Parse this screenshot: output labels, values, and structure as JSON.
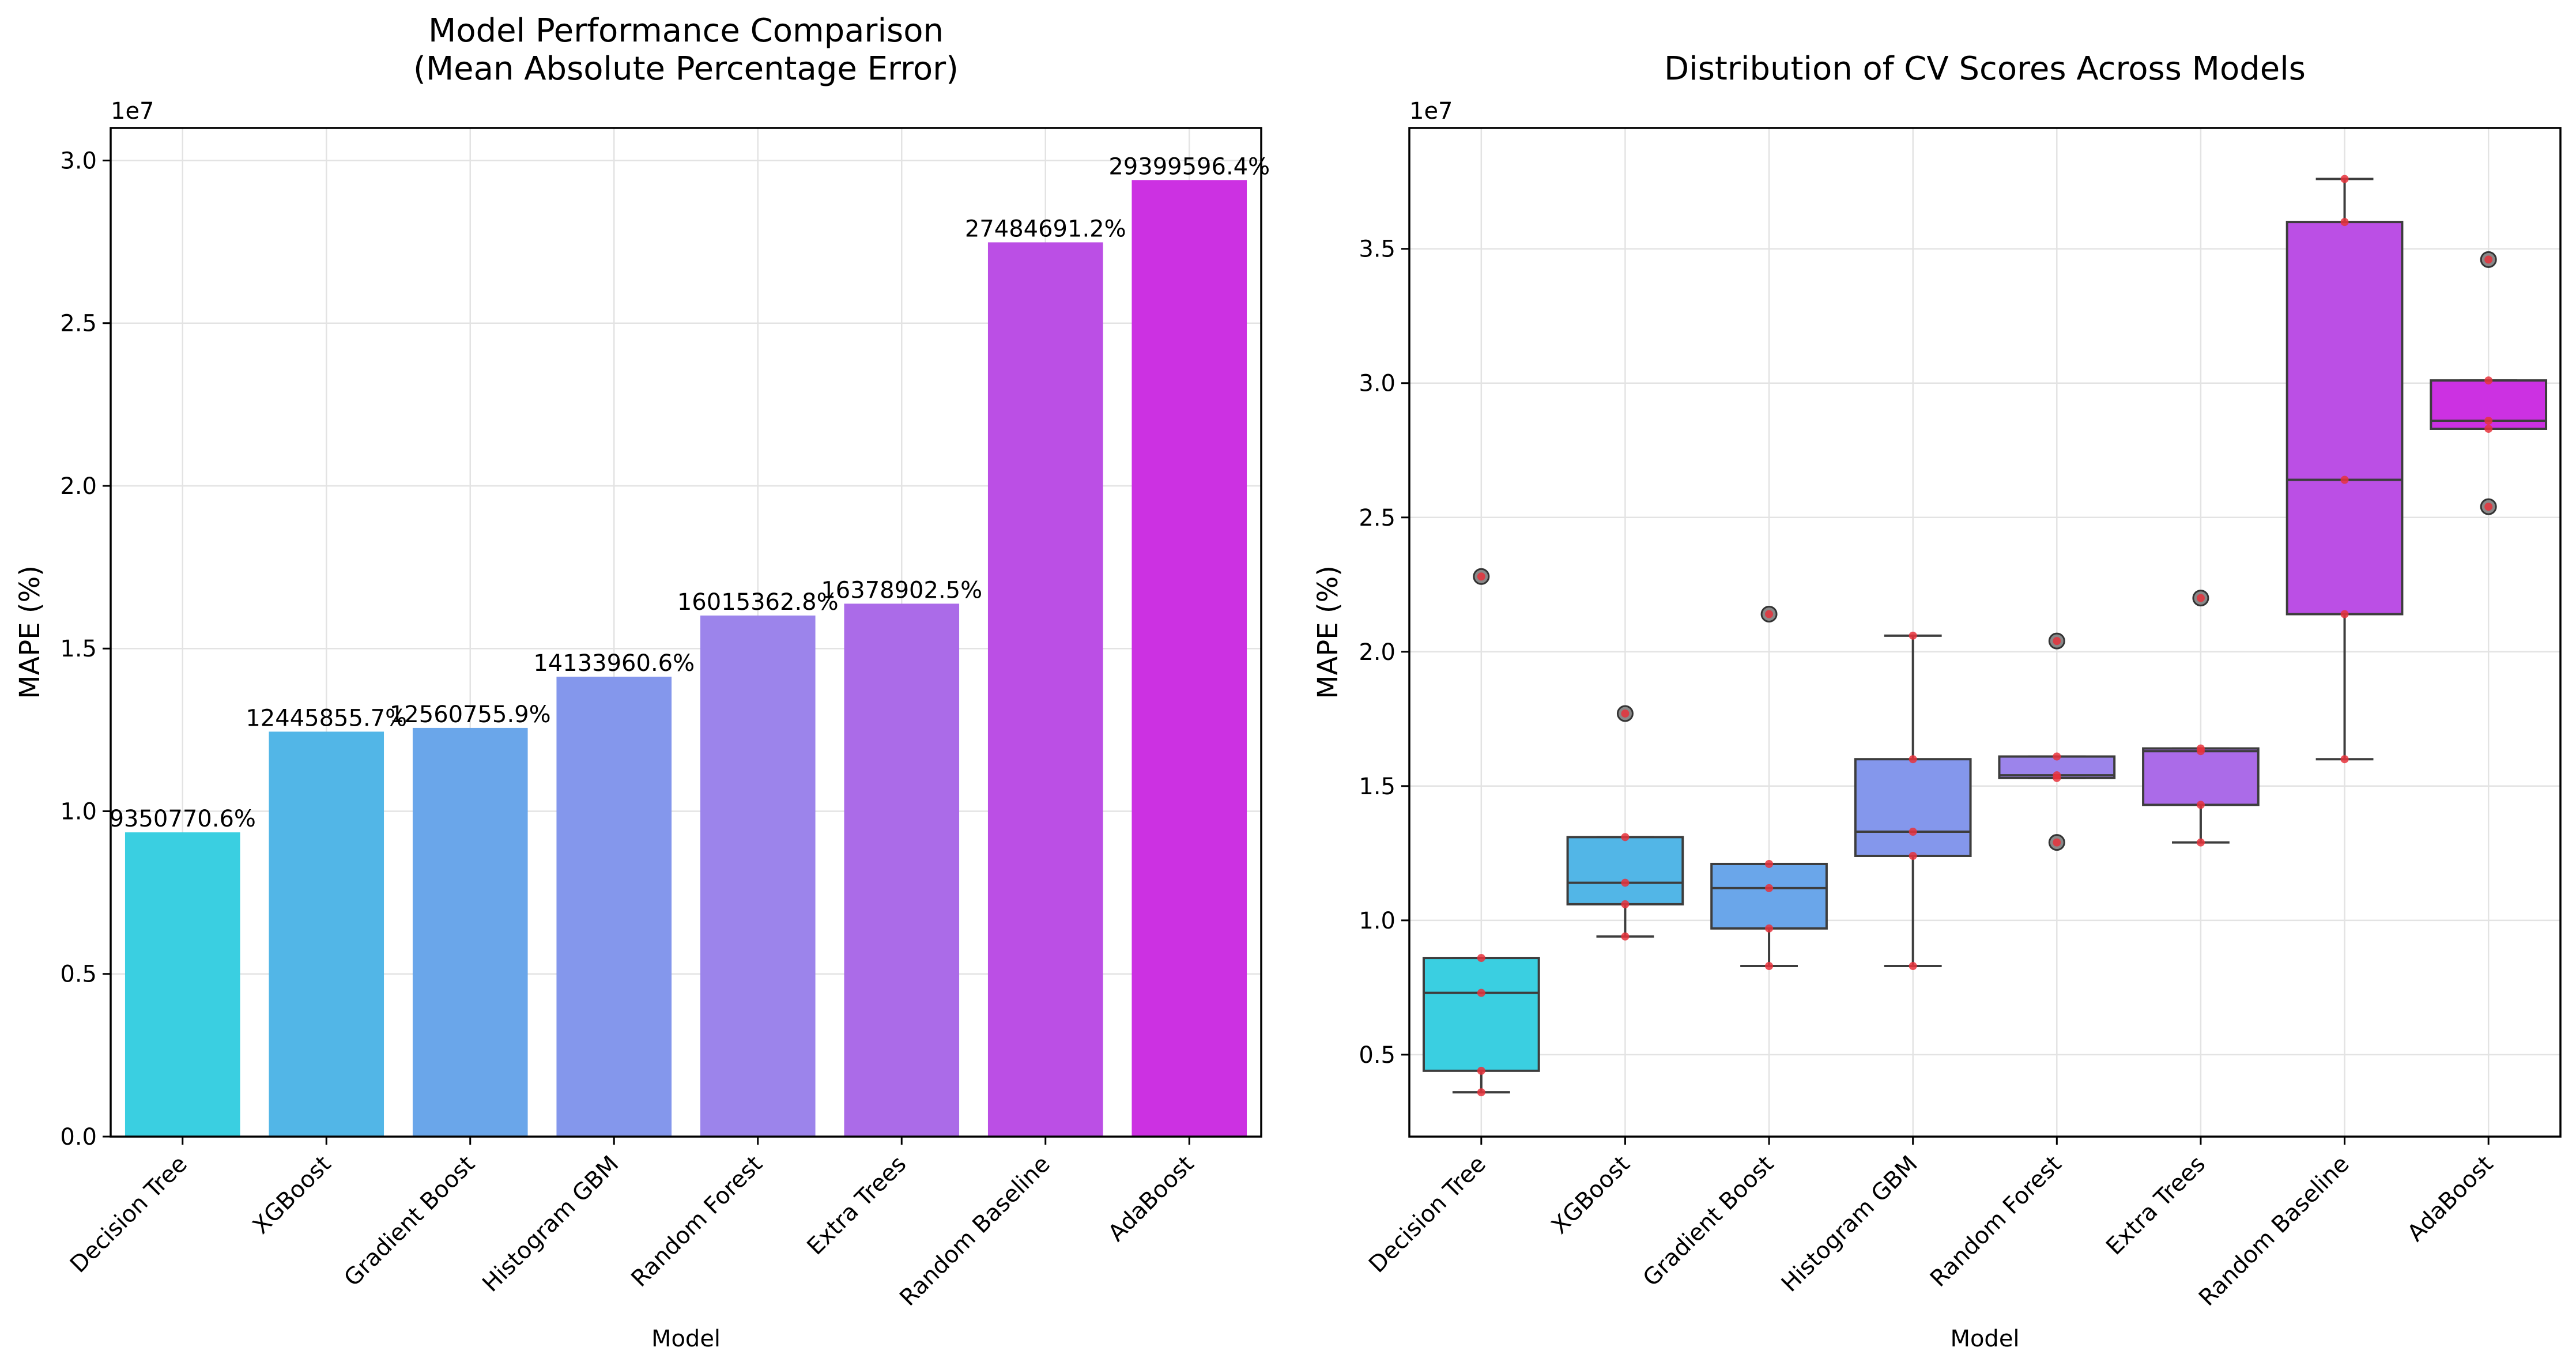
{
  "chart_data": [
    {
      "type": "bar",
      "title": "Model Performance Comparison\n(Mean Absolute Percentage Error)",
      "xlabel": "Model",
      "ylabel": "MAPE (%)",
      "y_offset_label": "1e7",
      "ylim": [
        0,
        31000000
      ],
      "yticks": [
        0,
        5000000,
        10000000,
        15000000,
        20000000,
        25000000,
        30000000
      ],
      "ytick_labels": [
        "0.0",
        "0.5",
        "1.0",
        "1.5",
        "2.0",
        "2.5",
        "3.0"
      ],
      "categories": [
        "Decision Tree",
        "XGBoost",
        "Gradient Boost",
        "Histogram GBM",
        "Random Forest",
        "Extra Trees",
        "Random Baseline",
        "AdaBoost"
      ],
      "values": [
        9350770.6,
        12445855.7,
        12560755.9,
        14133960.6,
        16015362.8,
        16378902.5,
        27484691.2,
        29399596.4
      ],
      "data_labels": [
        "9350770.6%",
        "12445855.7%",
        "12560755.9%",
        "14133960.6%",
        "16015362.8%",
        "16378902.5%",
        "27484691.2%",
        "29399596.4%"
      ],
      "colors": [
        "#3acfe1",
        "#52b6e7",
        "#6aa6ea",
        "#8497ec",
        "#9c84eb",
        "#ab6be8",
        "#bb4fe5",
        "#cc31e2"
      ],
      "grid": true
    },
    {
      "type": "box",
      "title": "Distribution of CV Scores Across Models",
      "xlabel": "Model",
      "ylabel": "MAPE (%)",
      "y_offset_label": "1e7",
      "ylim": [
        1950000,
        39500000
      ],
      "yticks": [
        5000000,
        10000000,
        15000000,
        20000000,
        25000000,
        30000000,
        35000000
      ],
      "ytick_labels": [
        "0.5",
        "1.0",
        "1.5",
        "2.0",
        "2.5",
        "3.0",
        "3.5"
      ],
      "categories": [
        "Decision Tree",
        "XGBoost",
        "Gradient Boost",
        "Histogram GBM",
        "Random Forest",
        "Extra Trees",
        "Random Baseline",
        "AdaBoost"
      ],
      "colors": [
        "#3acfe1",
        "#52b6e7",
        "#6aa6ea",
        "#8497ec",
        "#9c84eb",
        "#ab6be8",
        "#bb4fe5",
        "#cc31e2"
      ],
      "boxes": [
        {
          "q1": 4400000,
          "median": 7300000,
          "q3": 8600000,
          "whisker_low": 3600000,
          "whisker_high": 8600000,
          "outliers": [
            22800000
          ]
        },
        {
          "q1": 10600000,
          "median": 11400000,
          "q3": 13100000,
          "whisker_low": 9400000,
          "whisker_high": 13100000,
          "outliers": [
            17700000
          ]
        },
        {
          "q1": 9700000,
          "median": 11200000,
          "q3": 12100000,
          "whisker_low": 8300000,
          "whisker_high": 12100000,
          "outliers": [
            21400000
          ]
        },
        {
          "q1": 12400000,
          "median": 13300000,
          "q3": 16000000,
          "whisker_low": 8300000,
          "whisker_high": 20600000,
          "outliers": []
        },
        {
          "q1": 15300000,
          "median": 15400000,
          "q3": 16100000,
          "whisker_low": 15300000,
          "whisker_high": 16100000,
          "outliers": [
            12900000,
            20400000
          ]
        },
        {
          "q1": 14300000,
          "median": 16300000,
          "q3": 16400000,
          "whisker_low": 12900000,
          "whisker_high": 16400000,
          "outliers": [
            22000000
          ]
        },
        {
          "q1": 21400000,
          "median": 26400000,
          "q3": 36000000,
          "whisker_low": 16000000,
          "whisker_high": 37600000,
          "outliers": []
        },
        {
          "q1": 28300000,
          "median": 28600000,
          "q3": 30100000,
          "whisker_low": 28300000,
          "whisker_high": 30100000,
          "outliers": [
            25400000,
            34600000
          ]
        }
      ],
      "points": [
        [
          3600000,
          4400000,
          7300000,
          8600000,
          22800000
        ],
        [
          9400000,
          10600000,
          11400000,
          13100000,
          17700000
        ],
        [
          8300000,
          9700000,
          11200000,
          12100000,
          21400000
        ],
        [
          8300000,
          12400000,
          13300000,
          16000000,
          20600000
        ],
        [
          12900000,
          15300000,
          15400000,
          16100000,
          20400000
        ],
        [
          12900000,
          14300000,
          16300000,
          16400000,
          22000000
        ],
        [
          16000000,
          21400000,
          26400000,
          36000000,
          37600000
        ],
        [
          25400000,
          28300000,
          28600000,
          30100000,
          34600000
        ]
      ],
      "grid": true
    }
  ]
}
